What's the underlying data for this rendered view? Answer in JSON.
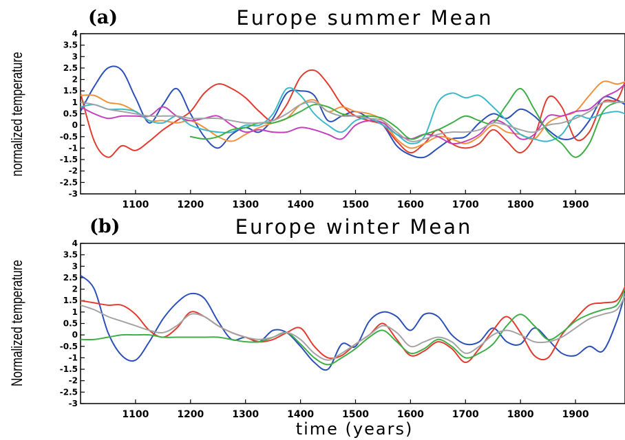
{
  "figure": {
    "xlabel": "time (years)"
  },
  "chart_data": [
    {
      "type": "line",
      "panel": "(a)",
      "title": "Europe summer Mean",
      "xlabel": "",
      "ylabel": "normalized temperature",
      "xlim": [
        1000,
        1990
      ],
      "ylim": [
        -3,
        4
      ],
      "xticks": [
        1100,
        1200,
        1300,
        1400,
        1500,
        1600,
        1700,
        1800,
        1900
      ],
      "yticks": [
        -3,
        -2.5,
        -2,
        -1.5,
        -1,
        -0.5,
        0,
        0.5,
        1,
        1.5,
        2,
        2.5,
        3,
        3.5,
        4
      ],
      "x": [
        1000,
        1025,
        1050,
        1075,
        1100,
        1125,
        1150,
        1175,
        1200,
        1225,
        1250,
        1275,
        1300,
        1325,
        1350,
        1375,
        1400,
        1425,
        1450,
        1475,
        1500,
        1525,
        1550,
        1575,
        1600,
        1625,
        1650,
        1675,
        1700,
        1725,
        1750,
        1775,
        1800,
        1825,
        1850,
        1875,
        1900,
        1925,
        1950,
        1975,
        1990
      ],
      "series": [
        {
          "color": "#2b4fb8",
          "values": [
            0.6,
            1.7,
            2.5,
            2.4,
            1.2,
            0.1,
            0.9,
            1.6,
            0.5,
            -0.5,
            -1.0,
            -0.4,
            -0.1,
            -0.3,
            0.3,
            1.4,
            1.5,
            1.3,
            0.2,
            0.4,
            0.6,
            0.3,
            0.0,
            -0.9,
            -1.3,
            -1.4,
            -1.0,
            -0.6,
            -0.5,
            0.1,
            0.5,
            0.3,
            0.7,
            0.4,
            -0.2,
            -0.6,
            -0.5,
            0.2,
            1.2,
            1.1,
            0.9
          ]
        },
        {
          "color": "#e23b2e",
          "values": [
            1.4,
            -0.7,
            -1.4,
            -0.9,
            -1.1,
            -0.7,
            -0.2,
            0.2,
            0.6,
            1.4,
            1.8,
            1.6,
            1.2,
            0.6,
            0.2,
            0.9,
            2.1,
            2.4,
            1.8,
            0.9,
            0.4,
            0.2,
            0.0,
            -0.7,
            -1.2,
            -0.8,
            -0.2,
            -0.8,
            -1.0,
            -0.8,
            -0.2,
            -0.7,
            -1.2,
            -0.5,
            1.2,
            0.8,
            -0.6,
            -0.3,
            1.0,
            1.1,
            1.9
          ]
        },
        {
          "color": "#f0913c",
          "values": [
            1.3,
            1.3,
            1.0,
            0.9,
            0.6,
            0.2,
            0.2,
            0.1,
            0.2,
            -0.1,
            -0.5,
            -0.7,
            -0.4,
            -0.1,
            0.1,
            0.3,
            0.9,
            1.1,
            0.6,
            0.8,
            0.6,
            0.5,
            0.2,
            -0.6,
            -1.0,
            -0.8,
            -0.5,
            -0.6,
            -0.8,
            -0.5,
            0.0,
            -0.3,
            -0.4,
            -0.6,
            0.1,
            0.4,
            0.6,
            1.3,
            1.9,
            1.8,
            1.9
          ]
        },
        {
          "color": "#c23fbe",
          "values": [
            0.8,
            0.5,
            0.3,
            0.4,
            0.4,
            0.4,
            0.8,
            0.4,
            0.2,
            0.3,
            0.4,
            0.0,
            -0.3,
            -0.2,
            -0.3,
            -0.3,
            -0.1,
            -0.2,
            -0.4,
            -0.6,
            0.0,
            0.2,
            0.1,
            -0.4,
            -0.6,
            -0.4,
            -0.5,
            -0.8,
            -0.7,
            -0.4,
            0.2,
            0.0,
            -0.6,
            -0.4,
            0.4,
            0.4,
            0.6,
            0.7,
            1.2,
            1.5,
            1.8
          ]
        },
        {
          "color": "#3bb8c9",
          "values": [
            0.8,
            0.9,
            0.7,
            0.7,
            0.6,
            0.2,
            0.1,
            0.4,
            0.0,
            -0.2,
            -0.3,
            -0.3,
            0.0,
            0.0,
            0.5,
            1.6,
            1.3,
            0.5,
            0.0,
            -0.3,
            0.2,
            0.3,
            0.0,
            -0.4,
            -0.8,
            -0.5,
            1.0,
            1.4,
            1.2,
            1.3,
            0.8,
            0.2,
            -0.4,
            -0.6,
            -0.7,
            -0.4,
            0.4,
            0.3,
            0.5,
            0.6,
            0.5
          ]
        },
        {
          "color": "#3fae46",
          "values": [
            null,
            null,
            null,
            null,
            null,
            null,
            null,
            null,
            -0.5,
            -0.6,
            -0.5,
            -0.2,
            -0.1,
            0.1,
            0.1,
            0.3,
            0.6,
            0.9,
            0.8,
            0.5,
            0.4,
            0.4,
            0.3,
            -0.1,
            -0.6,
            -0.4,
            -0.2,
            0.1,
            0.4,
            0.2,
            0.1,
            0.9,
            1.6,
            0.7,
            -0.3,
            -0.8,
            -1.4,
            -0.8,
            0.6,
            1.0,
            1.0
          ]
        },
        {
          "color": "#a3a3a3",
          "values": [
            1.0,
            0.9,
            0.7,
            0.6,
            0.5,
            0.4,
            0.4,
            0.4,
            0.3,
            0.3,
            0.3,
            0.2,
            0.1,
            0.1,
            0.2,
            0.5,
            0.9,
            1.0,
            0.6,
            0.4,
            0.4,
            0.3,
            0.2,
            -0.3,
            -0.7,
            -0.6,
            -0.4,
            -0.3,
            -0.3,
            -0.2,
            0.1,
            0.0,
            -0.2,
            -0.3,
            0.0,
            0.1,
            0.3,
            0.6,
            1.0,
            1.0,
            1.0
          ]
        }
      ]
    },
    {
      "type": "line",
      "panel": "(b)",
      "title": "Europe winter Mean",
      "xlabel": "",
      "ylabel": "Normalized temperature",
      "xlim": [
        1000,
        1990
      ],
      "ylim": [
        -3,
        4
      ],
      "xticks": [
        1100,
        1200,
        1300,
        1400,
        1500,
        1600,
        1700,
        1800,
        1900
      ],
      "yticks": [
        -3,
        -2.5,
        -2,
        -1.5,
        -1,
        -0.5,
        0,
        0.5,
        1,
        1.5,
        2,
        2.5,
        3,
        3.5,
        4
      ],
      "x": [
        1000,
        1025,
        1050,
        1075,
        1100,
        1125,
        1150,
        1175,
        1200,
        1225,
        1250,
        1275,
        1300,
        1325,
        1350,
        1375,
        1400,
        1425,
        1450,
        1475,
        1500,
        1525,
        1550,
        1575,
        1600,
        1625,
        1650,
        1675,
        1700,
        1725,
        1750,
        1775,
        1800,
        1825,
        1850,
        1875,
        1900,
        1925,
        1950,
        1975,
        1990
      ],
      "series": [
        {
          "color": "#2b4fb8",
          "values": [
            2.6,
            2.0,
            0.1,
            -0.9,
            -1.1,
            -0.3,
            0.7,
            1.4,
            1.8,
            1.6,
            0.6,
            -0.2,
            -0.1,
            -0.3,
            0.2,
            0.1,
            -0.5,
            -1.2,
            -1.5,
            -0.4,
            -0.5,
            0.6,
            1.0,
            0.8,
            0.2,
            0.9,
            0.8,
            0.0,
            -0.4,
            -0.3,
            0.3,
            -0.3,
            -0.4,
            0.3,
            -0.2,
            -0.8,
            -0.9,
            -0.5,
            -0.7,
            0.6,
            1.8
          ]
        },
        {
          "color": "#e23b2e",
          "values": [
            1.5,
            1.4,
            1.3,
            1.3,
            0.9,
            0.2,
            -0.1,
            0.3,
            1.0,
            0.8,
            0.4,
            0.1,
            -0.1,
            -0.3,
            -0.2,
            0.1,
            0.3,
            -0.5,
            -1.0,
            -0.9,
            -0.4,
            0.0,
            0.5,
            -0.2,
            -0.9,
            -0.7,
            -0.3,
            -0.6,
            -1.2,
            -0.6,
            0.2,
            0.8,
            0.1,
            -0.9,
            -1.0,
            0.0,
            0.7,
            1.3,
            1.4,
            1.5,
            2.1
          ]
        },
        {
          "color": "#3fae46",
          "values": [
            -0.2,
            -0.2,
            -0.1,
            0.0,
            0.0,
            0.0,
            -0.1,
            -0.1,
            -0.1,
            -0.1,
            -0.1,
            -0.2,
            -0.3,
            -0.3,
            -0.1,
            0.1,
            -0.4,
            -1.0,
            -1.3,
            -1.0,
            -0.6,
            -0.1,
            0.2,
            -0.3,
            -0.8,
            -0.6,
            -0.2,
            -0.5,
            -1.0,
            -0.8,
            -0.4,
            0.4,
            0.9,
            0.4,
            -0.2,
            0.1,
            0.6,
            0.9,
            1.1,
            1.3,
            2.0
          ]
        },
        {
          "color": "#a3a3a3",
          "values": [
            1.3,
            1.1,
            0.8,
            0.6,
            0.4,
            0.2,
            0.1,
            0.4,
            0.9,
            0.8,
            0.4,
            0.1,
            -0.1,
            -0.2,
            -0.1,
            0.1,
            -0.2,
            -0.8,
            -1.1,
            -0.8,
            -0.4,
            0.0,
            0.4,
            0.1,
            -0.5,
            -0.3,
            -0.1,
            -0.3,
            -0.8,
            -0.5,
            0.0,
            0.2,
            0.0,
            -0.3,
            -0.3,
            -0.1,
            0.3,
            0.7,
            0.9,
            1.1,
            1.7
          ]
        }
      ]
    }
  ]
}
